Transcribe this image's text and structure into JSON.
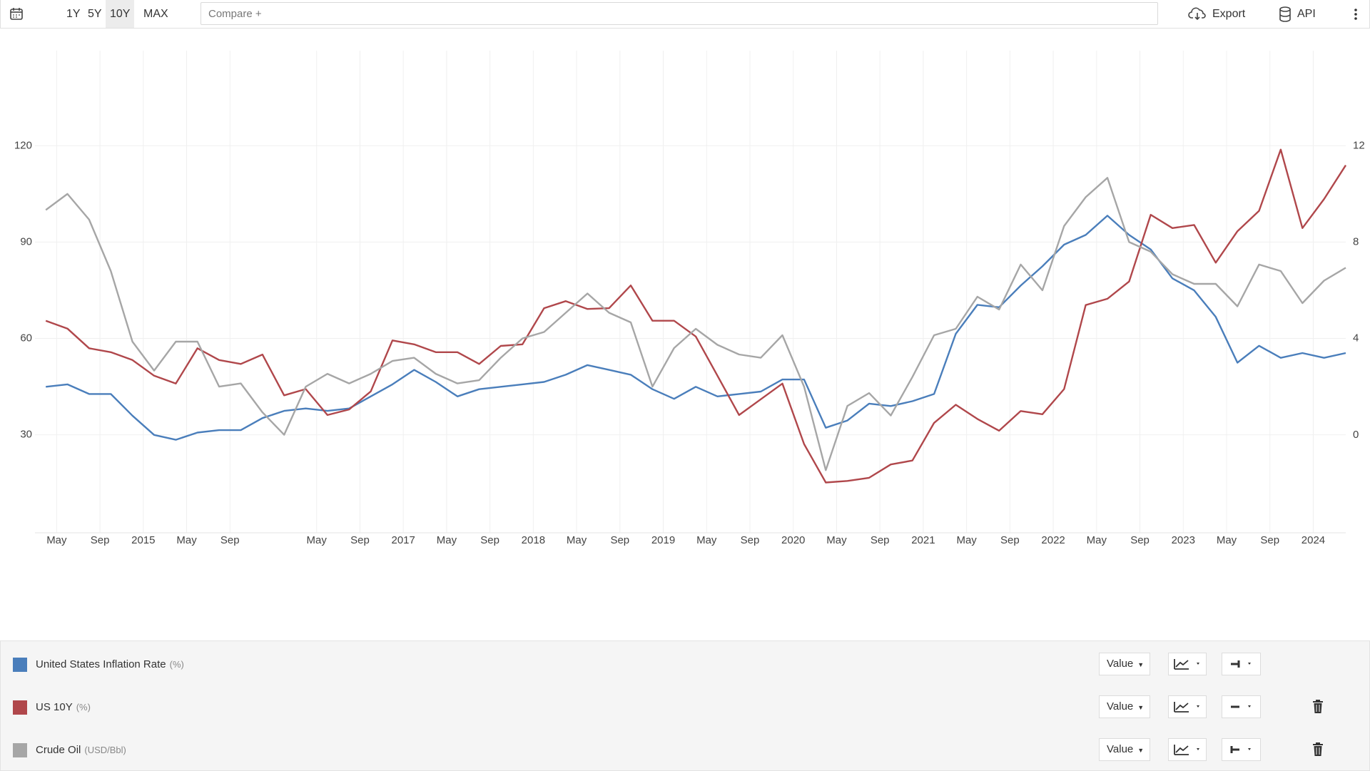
{
  "toolbar": {
    "ranges": [
      "1Y",
      "5Y",
      "10Y",
      "MAX"
    ],
    "active_range": "10Y",
    "compare_placeholder": "Compare +",
    "export": "Export",
    "api": "API"
  },
  "chart_data": {
    "type": "line",
    "x": [
      "2014-04",
      "2014-06",
      "2014-08",
      "2014-10",
      "2014-12",
      "2015-02",
      "2015-04",
      "2015-06",
      "2015-08",
      "2015-10",
      "2015-12",
      "2016-02",
      "2016-04",
      "2016-06",
      "2016-08",
      "2016-10",
      "2016-12",
      "2017-02",
      "2017-04",
      "2017-06",
      "2017-08",
      "2017-10",
      "2017-12",
      "2018-02",
      "2018-04",
      "2018-06",
      "2018-08",
      "2018-10",
      "2018-12",
      "2019-02",
      "2019-04",
      "2019-06",
      "2019-08",
      "2019-10",
      "2019-12",
      "2020-02",
      "2020-04",
      "2020-06",
      "2020-08",
      "2020-10",
      "2020-12",
      "2021-02",
      "2021-04",
      "2021-06",
      "2021-08",
      "2021-10",
      "2021-12",
      "2022-02",
      "2022-04",
      "2022-06",
      "2022-08",
      "2022-10",
      "2022-12",
      "2023-02",
      "2023-04",
      "2023-06",
      "2023-08",
      "2023-10",
      "2023-12",
      "2024-02",
      "2024-04"
    ],
    "xlim": [
      "2014-03",
      "2024-04"
    ],
    "xticks": [
      {
        "value": "2014-05",
        "label": "May"
      },
      {
        "value": "2014-09",
        "label": "Sep"
      },
      {
        "value": "2015-01",
        "label": "2015"
      },
      {
        "value": "2015-05",
        "label": "May"
      },
      {
        "value": "2015-09",
        "label": "Sep"
      },
      {
        "value": "2016-05",
        "label": "May"
      },
      {
        "value": "2016-09",
        "label": "Sep"
      },
      {
        "value": "2017-01",
        "label": "2017"
      },
      {
        "value": "2017-05",
        "label": "May"
      },
      {
        "value": "2017-09",
        "label": "Sep"
      },
      {
        "value": "2018-01",
        "label": "2018"
      },
      {
        "value": "2018-05",
        "label": "May"
      },
      {
        "value": "2018-09",
        "label": "Sep"
      },
      {
        "value": "2019-01",
        "label": "2019"
      },
      {
        "value": "2019-05",
        "label": "May"
      },
      {
        "value": "2019-09",
        "label": "Sep"
      },
      {
        "value": "2020-01",
        "label": "2020"
      },
      {
        "value": "2020-05",
        "label": "May"
      },
      {
        "value": "2020-09",
        "label": "Sep"
      },
      {
        "value": "2021-01",
        "label": "2021"
      },
      {
        "value": "2021-05",
        "label": "May"
      },
      {
        "value": "2021-09",
        "label": "Sep"
      },
      {
        "value": "2022-01",
        "label": "2022"
      },
      {
        "value": "2022-05",
        "label": "May"
      },
      {
        "value": "2022-09",
        "label": "Sep"
      },
      {
        "value": "2023-01",
        "label": "2023"
      },
      {
        "value": "2023-05",
        "label": "May"
      },
      {
        "value": "2023-09",
        "label": "Sep"
      },
      {
        "value": "2024-01",
        "label": "2024"
      }
    ],
    "ylim": [
      -0.5,
      149.6
    ],
    "yticks": [
      30,
      60,
      90,
      120
    ],
    "y2lim": [
      -4.06,
      15.95
    ],
    "y2ticks": [
      0,
      4,
      8,
      12
    ],
    "y3lim": [
      0,
      6.14
    ],
    "grid": true,
    "series": [
      {
        "name": "United States Inflation Rate",
        "unit": "(%)",
        "color": "#4a7ebb",
        "axis": "y2",
        "values": [
          2.0,
          2.1,
          1.7,
          1.7,
          0.8,
          0.0,
          -0.2,
          0.1,
          0.2,
          0.2,
          0.7,
          1.0,
          1.1,
          1.0,
          1.1,
          1.6,
          2.1,
          2.7,
          2.2,
          1.6,
          1.9,
          2.0,
          2.1,
          2.2,
          2.5,
          2.9,
          2.7,
          2.5,
          1.9,
          1.5,
          2.0,
          1.6,
          1.7,
          1.8,
          2.3,
          2.3,
          0.3,
          0.6,
          1.3,
          1.2,
          1.4,
          1.7,
          4.2,
          5.4,
          5.3,
          6.2,
          7.0,
          7.9,
          8.3,
          9.1,
          8.3,
          7.7,
          6.5,
          6.0,
          4.9,
          3.0,
          3.7,
          3.2,
          3.4,
          3.2,
          3.4
        ]
      },
      {
        "name": "US 10Y",
        "unit": "(%)",
        "color": "#b0474b",
        "axis": "y3",
        "values": [
          2.7,
          2.6,
          2.35,
          2.3,
          2.2,
          2.0,
          1.9,
          2.35,
          2.2,
          2.15,
          2.27,
          1.75,
          1.83,
          1.5,
          1.57,
          1.8,
          2.45,
          2.4,
          2.3,
          2.3,
          2.15,
          2.38,
          2.4,
          2.86,
          2.95,
          2.85,
          2.86,
          3.15,
          2.7,
          2.7,
          2.5,
          2.0,
          1.5,
          1.7,
          1.9,
          1.13,
          0.64,
          0.66,
          0.7,
          0.87,
          0.92,
          1.4,
          1.63,
          1.45,
          1.3,
          1.55,
          1.51,
          1.83,
          2.9,
          2.98,
          3.2,
          4.05,
          3.88,
          3.92,
          3.44,
          3.84,
          4.1,
          4.88,
          3.88,
          4.25,
          4.68
        ]
      },
      {
        "name": "Crude Oil",
        "unit": "(USD/Bbl)",
        "color": "#a6a6a6",
        "axis": "y",
        "values": [
          100,
          105,
          97,
          81,
          59,
          50,
          59,
          59,
          45,
          46,
          37,
          30,
          45,
          49,
          46,
          49,
          53,
          54,
          49,
          46,
          47,
          54,
          60,
          62,
          68,
          74,
          68,
          65,
          45,
          57,
          63,
          58,
          55,
          54,
          61,
          45,
          19,
          39,
          43,
          36,
          48,
          61,
          63,
          73,
          69,
          83,
          75,
          95,
          104,
          110,
          90,
          87,
          80,
          77,
          77,
          70,
          83,
          81,
          71,
          78,
          82
        ]
      }
    ]
  },
  "legend_controls": [
    "Value",
    "Value",
    "Value"
  ]
}
